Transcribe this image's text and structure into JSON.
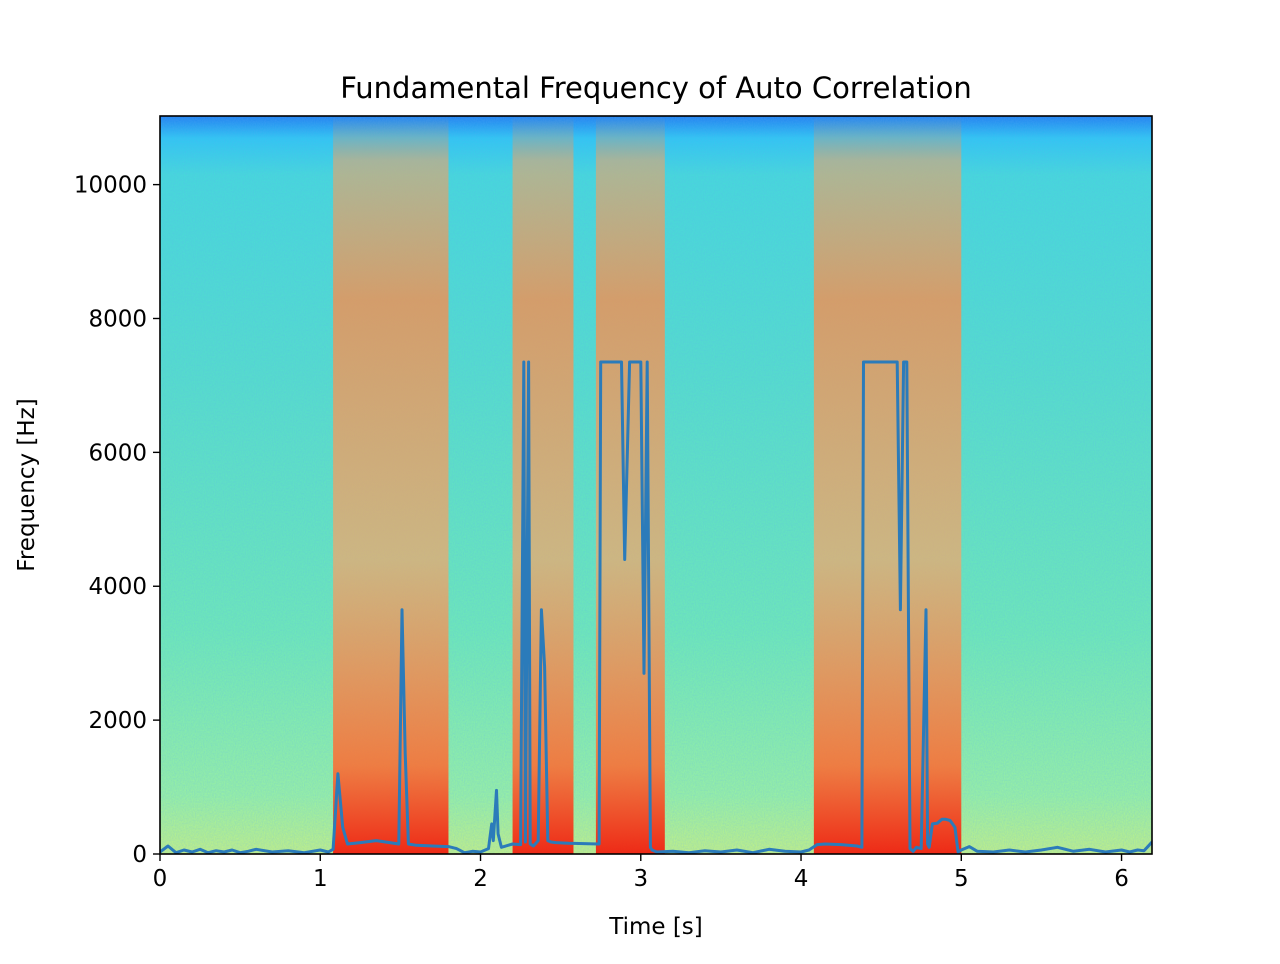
{
  "chart_data": {
    "type": "line",
    "title": "Fundamental Frequency of Auto Correlation",
    "xlabel": "Time [s]",
    "ylabel": "Frequency [Hz]",
    "xlim": [
      0,
      6.19
    ],
    "ylim": [
      0,
      11025
    ],
    "xticks": [
      0,
      1,
      2,
      3,
      4,
      5,
      6
    ],
    "yticks": [
      0,
      2000,
      4000,
      6000,
      8000,
      10000
    ],
    "xtick_labels": [
      "0",
      "1",
      "2",
      "3",
      "4",
      "5",
      "6"
    ],
    "ytick_labels": [
      "0",
      "2000",
      "4000",
      "6000",
      "8000",
      "10000"
    ],
    "background": "spectrogram (jet colormap)",
    "grid": false,
    "line_color": "#2b7bba",
    "series": [
      {
        "x": [
          0,
          0.05,
          0.1,
          0.15,
          0.2,
          0.25,
          0.3,
          0.35,
          0.4,
          0.45,
          0.5,
          0.55,
          0.6,
          0.7,
          0.8,
          0.9,
          1.0,
          1.05,
          1.08,
          1.11,
          1.14,
          1.17,
          1.25,
          1.35,
          1.49,
          1.51,
          1.53,
          1.55,
          1.6,
          1.7,
          1.8,
          1.85,
          1.9,
          1.95,
          2.0,
          2.05,
          2.07,
          2.08,
          2.1,
          2.11,
          2.13,
          2.2,
          2.25,
          2.27,
          2.28,
          2.3,
          2.31,
          2.33,
          2.36,
          2.38,
          2.4,
          2.42,
          2.44,
          2.47,
          2.55,
          2.74,
          2.75,
          2.8,
          2.88,
          2.9,
          2.93,
          2.98,
          3.0,
          3.02,
          3.04,
          3.06,
          3.07,
          3.1,
          3.2,
          3.3,
          3.4,
          3.5,
          3.6,
          3.7,
          3.8,
          3.9,
          4.0,
          4.05,
          4.1,
          4.15,
          4.25,
          4.35,
          4.38,
          4.39,
          4.42,
          4.5,
          4.6,
          4.62,
          4.64,
          4.66,
          4.68,
          4.7,
          4.72,
          4.75,
          4.78,
          4.79,
          4.8,
          4.82,
          4.85,
          4.88,
          4.9,
          4.93,
          4.96,
          4.98,
          5.0,
          5.05,
          5.1,
          5.2,
          5.3,
          5.4,
          5.5,
          5.6,
          5.7,
          5.8,
          5.9,
          6.0,
          6.05,
          6.1,
          6.14,
          6.16,
          6.19
        ],
        "y": [
          30,
          120,
          20,
          60,
          30,
          70,
          20,
          50,
          30,
          60,
          20,
          40,
          70,
          30,
          50,
          20,
          60,
          30,
          70,
          1200,
          400,
          150,
          170,
          200,
          150,
          3650,
          1500,
          150,
          130,
          120,
          110,
          80,
          20,
          40,
          30,
          80,
          450,
          200,
          950,
          300,
          100,
          150,
          140,
          7350,
          180,
          7350,
          150,
          120,
          200,
          3650,
          2800,
          200,
          180,
          170,
          160,
          150,
          7350,
          7350,
          7350,
          4400,
          7350,
          7350,
          7350,
          2700,
          7350,
          100,
          60,
          30,
          40,
          20,
          50,
          30,
          60,
          20,
          70,
          40,
          30,
          60,
          140,
          150,
          140,
          120,
          100,
          7350,
          7350,
          7350,
          7350,
          3650,
          7350,
          7350,
          80,
          40,
          100,
          80,
          3650,
          150,
          100,
          450,
          460,
          520,
          520,
          500,
          400,
          30,
          60,
          110,
          40,
          30,
          60,
          30,
          60,
          100,
          40,
          70,
          30,
          60,
          30,
          60,
          50,
          100,
          180
        ]
      }
    ]
  }
}
